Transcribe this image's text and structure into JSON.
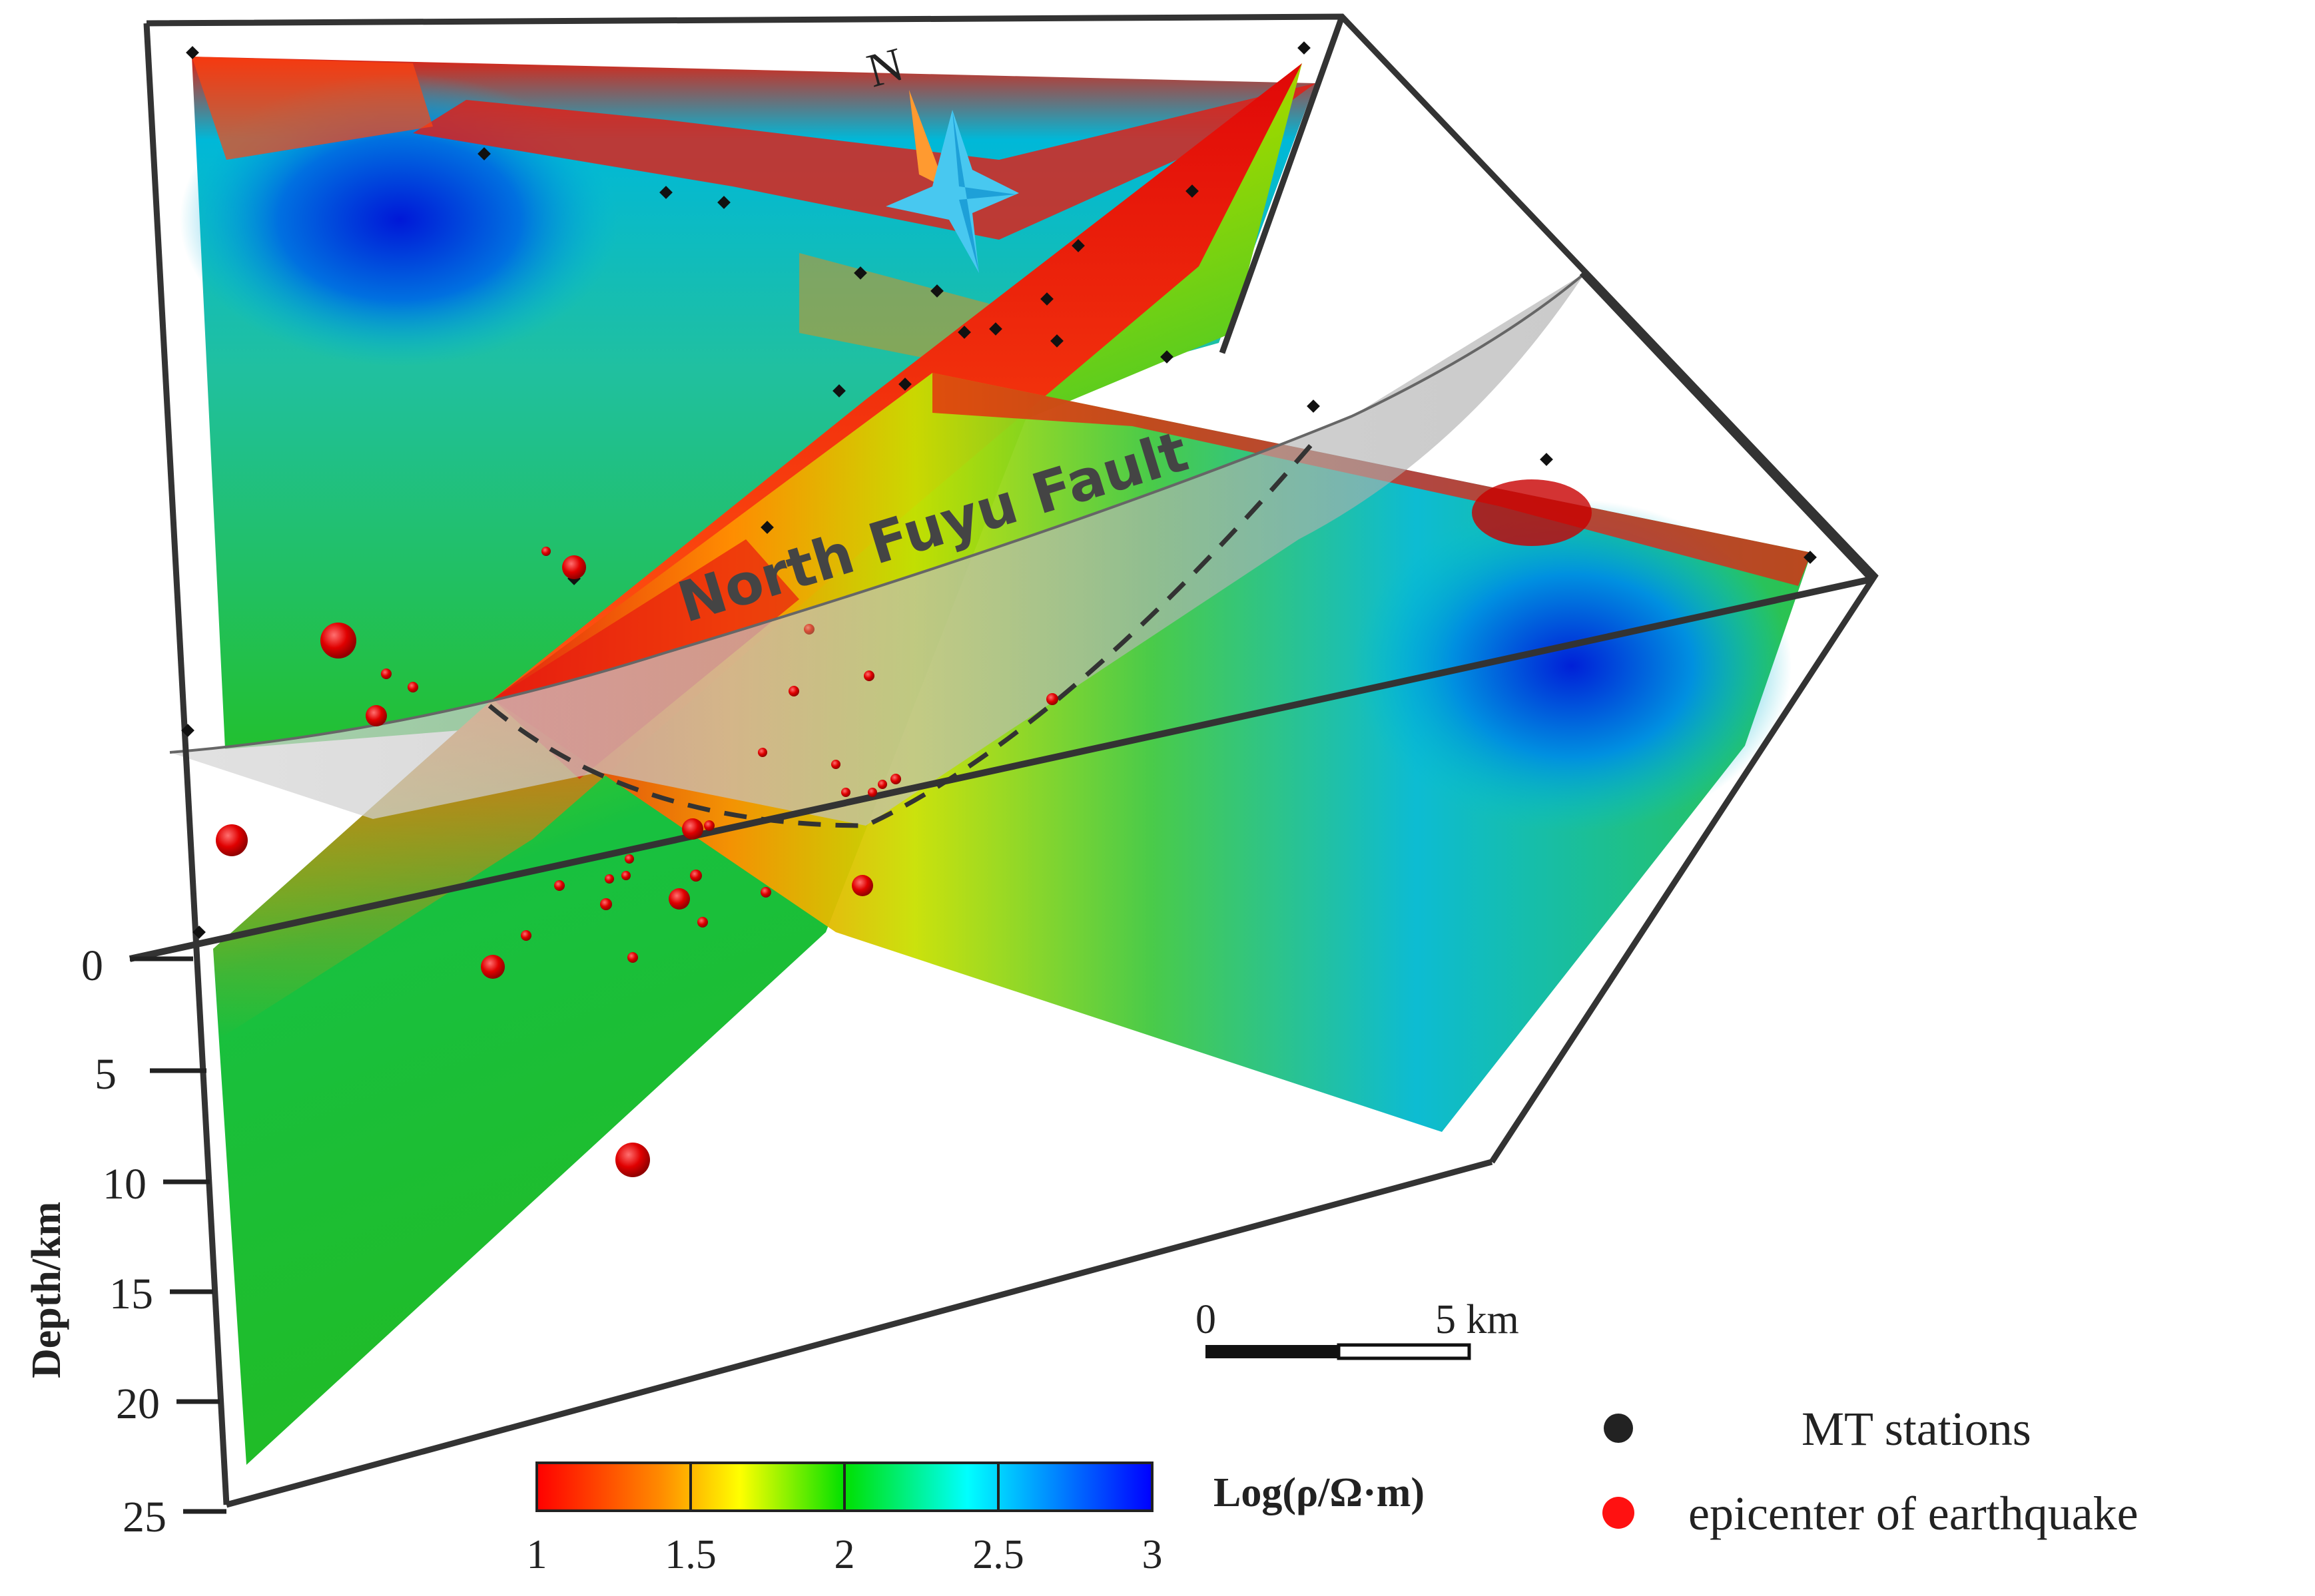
{
  "compass": {
    "label": "N"
  },
  "fault": {
    "label": "North  Fuyu Fault"
  },
  "depth_axis": {
    "title": "Depth/km",
    "ticks": [
      "0",
      "5",
      "10",
      "15",
      "20",
      "25"
    ]
  },
  "scale_bar": {
    "start": "0",
    "end": "5 km"
  },
  "colorbar": {
    "title": "Log(ρ/Ω·m)",
    "ticks": [
      "1",
      "1.5",
      "2",
      "2.5",
      "3"
    ],
    "stops": [
      "#ff0000",
      "#ff8a00",
      "#ffff00",
      "#00e000",
      "#00ffff",
      "#0000ff"
    ]
  },
  "legend": {
    "items": [
      {
        "label": "MT stations",
        "color": "#222222"
      },
      {
        "label": "epicenter of earthquake",
        "color": "#ff1111"
      }
    ]
  }
}
